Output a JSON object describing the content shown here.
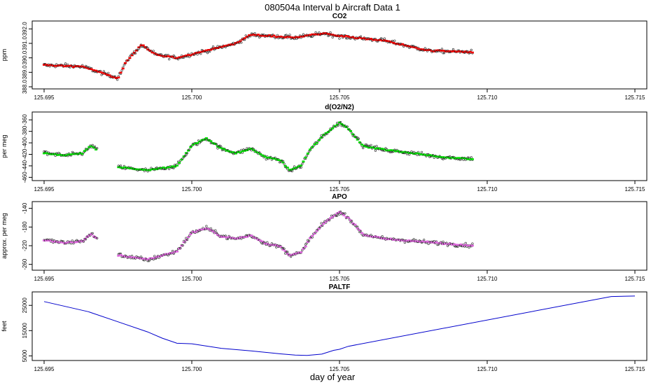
{
  "figure": {
    "title": "080504a   Interval b Aircraft Data 1",
    "xlabel": "day of year",
    "colors": {
      "co2": "#ee0000",
      "o2n2": "#00dd00",
      "apo": "#dd66dd",
      "paltf": "#0000cc",
      "axis": "#000000"
    }
  },
  "chart_data": [
    {
      "id": "co2",
      "type": "scatter",
      "title": "CO2",
      "ylabel": "ppm",
      "xlim": [
        125.695,
        125.715
      ],
      "ylim": [
        388.0,
        392.4
      ],
      "xticks": [
        125.695,
        125.7,
        125.705,
        125.71,
        125.715
      ],
      "xtick_labels": [
        "125.695",
        "125.700",
        "125.705",
        "125.710",
        "125.715"
      ],
      "yticks": [
        388.0,
        389.0,
        390.0,
        391.0,
        392.0
      ],
      "ytick_labels": [
        "388.0",
        "389.0",
        "390.0",
        "391.0",
        "392.0"
      ],
      "x_range": [
        125.695,
        125.7095
      ],
      "trend": [
        [
          125.695,
          389.5
        ],
        [
          125.6963,
          389.4
        ],
        [
          125.6975,
          388.6
        ],
        [
          125.6978,
          389.8
        ],
        [
          125.6983,
          390.9
        ],
        [
          125.6988,
          390.2
        ],
        [
          125.6995,
          390.0
        ],
        [
          125.7005,
          390.5
        ],
        [
          125.7015,
          391.0
        ],
        [
          125.702,
          391.6
        ],
        [
          125.7035,
          391.4
        ],
        [
          125.7045,
          391.7
        ],
        [
          125.705,
          391.5
        ],
        [
          125.7065,
          391.2
        ],
        [
          125.708,
          390.5
        ],
        [
          125.7095,
          390.4
        ]
      ],
      "segments": []
    },
    {
      "id": "o2n2",
      "type": "scatter",
      "title": "d(O2/N2)",
      "ylabel": "per meg",
      "xlim": [
        125.695,
        125.715
      ],
      "ylim": [
        -462,
        -350
      ],
      "xticks": [
        125.695,
        125.7,
        125.705,
        125.71,
        125.715
      ],
      "xtick_labels": [
        "125.695",
        "125.700",
        "125.705",
        "125.710",
        "125.715"
      ],
      "yticks": [
        -460,
        -440,
        -420,
        -400,
        -380,
        -360
      ],
      "ytick_labels": [
        "-460",
        "-440",
        "-420",
        "-400",
        "-380",
        "-360"
      ],
      "x_range": [
        125.695,
        125.7095
      ],
      "trend": [
        [
          125.695,
          -418
        ],
        [
          125.6957,
          -422
        ],
        [
          125.6963,
          -418
        ],
        [
          125.6966,
          -405
        ],
        [
          125.6968,
          -413
        ],
        [
          125.6975,
          -442
        ],
        [
          125.6985,
          -448
        ],
        [
          125.6995,
          -440
        ],
        [
          125.7,
          -405
        ],
        [
          125.7005,
          -392
        ],
        [
          125.701,
          -410
        ],
        [
          125.7015,
          -418
        ],
        [
          125.702,
          -410
        ],
        [
          125.7025,
          -425
        ],
        [
          125.703,
          -430
        ],
        [
          125.7033,
          -448
        ],
        [
          125.7037,
          -440
        ],
        [
          125.704,
          -412
        ],
        [
          125.7045,
          -385
        ],
        [
          125.705,
          -365
        ],
        [
          125.7053,
          -375
        ],
        [
          125.7058,
          -405
        ],
        [
          125.7065,
          -412
        ],
        [
          125.7075,
          -418
        ],
        [
          125.7085,
          -425
        ],
        [
          125.7095,
          -428
        ]
      ],
      "segments": [
        [
          125.695,
          125.6968
        ],
        [
          125.6975,
          125.7095
        ]
      ]
    },
    {
      "id": "apo",
      "type": "scatter",
      "title": "APO",
      "ylabel": "approx. per meg",
      "xlim": [
        125.695,
        125.715
      ],
      "ylim": [
        -268,
        -130
      ],
      "xticks": [
        125.695,
        125.7,
        125.705,
        125.71,
        125.715
      ],
      "xtick_labels": [
        "125.695",
        "125.700",
        "125.705",
        "125.710",
        "125.715"
      ],
      "yticks": [
        -260,
        -220,
        -180,
        -140
      ],
      "ytick_labels": [
        "-260",
        "-220",
        "-180",
        "-140"
      ],
      "x_range": [
        125.695,
        125.7095
      ],
      "trend": [
        [
          125.695,
          -208
        ],
        [
          125.6957,
          -214
        ],
        [
          125.6963,
          -210
        ],
        [
          125.6966,
          -195
        ],
        [
          125.6968,
          -205
        ],
        [
          125.6975,
          -240
        ],
        [
          125.6985,
          -250
        ],
        [
          125.6995,
          -232
        ],
        [
          125.7,
          -192
        ],
        [
          125.7005,
          -182
        ],
        [
          125.701,
          -200
        ],
        [
          125.7015,
          -205
        ],
        [
          125.702,
          -198
        ],
        [
          125.7025,
          -215
        ],
        [
          125.703,
          -222
        ],
        [
          125.7033,
          -240
        ],
        [
          125.7037,
          -235
        ],
        [
          125.704,
          -205
        ],
        [
          125.7045,
          -170
        ],
        [
          125.705,
          -148
        ],
        [
          125.7053,
          -160
        ],
        [
          125.7058,
          -196
        ],
        [
          125.7065,
          -205
        ],
        [
          125.7075,
          -210
        ],
        [
          125.7085,
          -215
        ],
        [
          125.7095,
          -220
        ]
      ],
      "segments": [
        [
          125.695,
          125.6968
        ],
        [
          125.6975,
          125.7095
        ]
      ]
    },
    {
      "id": "paltf",
      "type": "line",
      "title": "PALTF",
      "ylabel": "feet",
      "xlim": [
        125.695,
        125.715
      ],
      "ylim": [
        4000,
        29500
      ],
      "xticks": [
        125.695,
        125.7,
        125.705,
        125.71,
        125.715
      ],
      "xtick_labels": [
        "125.695",
        "125.700",
        "125.705",
        "125.710",
        "125.715"
      ],
      "yticks": [
        5000,
        15000,
        25000
      ],
      "ytick_labels": [
        "5000",
        "15000",
        "25000"
      ],
      "x": [
        125.695,
        125.6965,
        125.6975,
        125.6985,
        125.699,
        125.6995,
        125.7,
        125.701,
        125.702,
        125.703,
        125.7035,
        125.7039,
        125.7044,
        125.7048,
        125.705,
        125.7053,
        125.7142,
        125.715
      ],
      "y": [
        26500,
        22500,
        18500,
        14500,
        12000,
        10000,
        9800,
        8000,
        7000,
        5800,
        5300,
        5200,
        5700,
        7200,
        7600,
        8800,
        28500,
        28700
      ]
    }
  ]
}
